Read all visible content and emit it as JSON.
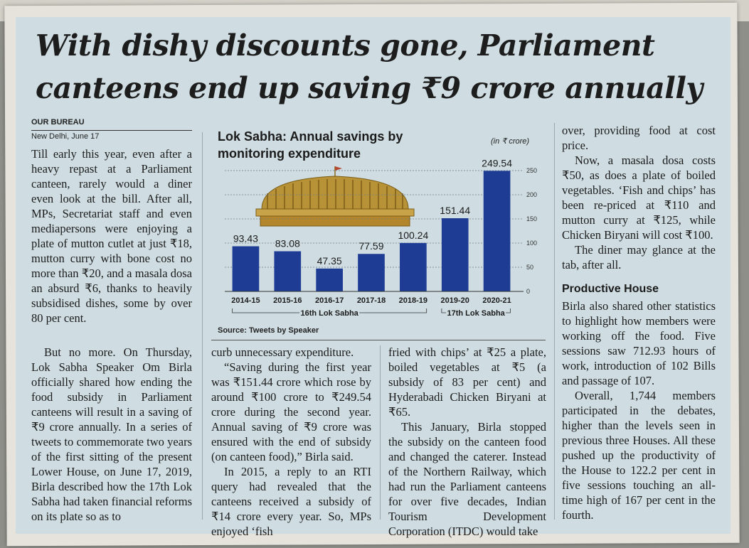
{
  "article": {
    "headline": "With dishy discounts gone, Parliament canteens end up saving ₹9 crore annually",
    "byline": "OUR BUREAU",
    "dateline": "New Delhi, June 17",
    "col1": [
      "Till early this year, even after a heavy repast at a Parliament canteen, rarely would a diner even look at the bill. After all, MPs, Secretariat staff and even mediapersons were enjoying a plate of mutton cutlet at just ₹18, mutton curry with bone cost no more than ₹20, and a masala dosa an absurd ₹6, thanks to heavily subsidised dishes, some by over 80 per cent."
    ],
    "col1b": [
      "But no more. On Thursday, Lok Sabha Speaker Om Birla officially shared how ending the food subsidy in Parliament canteens will result in a saving of ₹9 crore annually. In a series of tweets to commemorate two years of the first sitting of the present Lower House, on June 17, 2019, Birla described how the 17th Lok Sabha had taken financial reforms on its plate so as to"
    ],
    "col2": [
      "curb unnecessary expenditure.",
      "“Saving during the first year was ₹151.44 crore which rose by around ₹100 crore to ₹249.54 crore during the second year. Annual saving of ₹9 crore was ensured with the end of subsidy (on canteen food),” Birla said.",
      "In 2015, a reply to an RTI query had revealed that the canteens received a subsidy of ₹14 crore every year. So, MPs enjoyed ‘fish"
    ],
    "col3": [
      "fried with chips’ at ₹25 a plate, boiled vegetables at ₹5 (a subsidy of 83 per cent) and Hyderabadi Chicken Biryani at ₹65.",
      "This January, Birla stopped the subsidy on the canteen food and changed the caterer. Instead of the Northern Railway, which had run the Parliament canteens for over five decades, Indian Tourism Development Corporation (ITDC) would take"
    ],
    "col4": [
      "over, providing food at cost price.",
      "Now, a masala dosa costs ₹50, as does a plate of boiled vegetables. ‘Fish and chips’ has been re-priced at ₹110 and mutton curry at ₹125, while Chicken Biryani will cost ₹100.",
      "The diner may glance at the tab, after all."
    ],
    "subhead": "Productive House",
    "col4b": [
      "Birla also shared other statistics to highlight how members were working off the food. Five sessions saw 712.93 hours of work, introduction of 102 Bills and passage of 107.",
      "Overall, 1,744 members participated in the debates, higher than the levels seen in previous three Houses. All these pushed up the productivity of the House to 122.2 per cent in five sessions touching an all-time high of 167 per cent in the fourth."
    ]
  },
  "chart_data": {
    "type": "bar",
    "title": "Lok Sabha: Annual savings by monitoring expenditure",
    "unit": "(in ₹ crore)",
    "source": "Source: Tweets by Speaker",
    "categories": [
      "2014-15",
      "2015-16",
      "2016-17",
      "2017-18",
      "2018-19",
      "2019-20",
      "2020-21"
    ],
    "values": [
      93.43,
      83.08,
      47.35,
      77.59,
      100.24,
      151.44,
      249.54
    ],
    "value_labels": [
      "93.43",
      "83.08",
      "47.35",
      "77.59",
      "100.24",
      "151.44",
      "249.54"
    ],
    "ylim": [
      0,
      250
    ],
    "yticks": [
      "0",
      "50",
      "100",
      "150",
      "200",
      "250"
    ],
    "groups": [
      "16th Lok Sabha",
      "17th Lok Sabha"
    ],
    "grid": true,
    "colors": {
      "bar": "#1f3c94",
      "illustration": "#b89236",
      "grid": "#6f7f86"
    }
  }
}
